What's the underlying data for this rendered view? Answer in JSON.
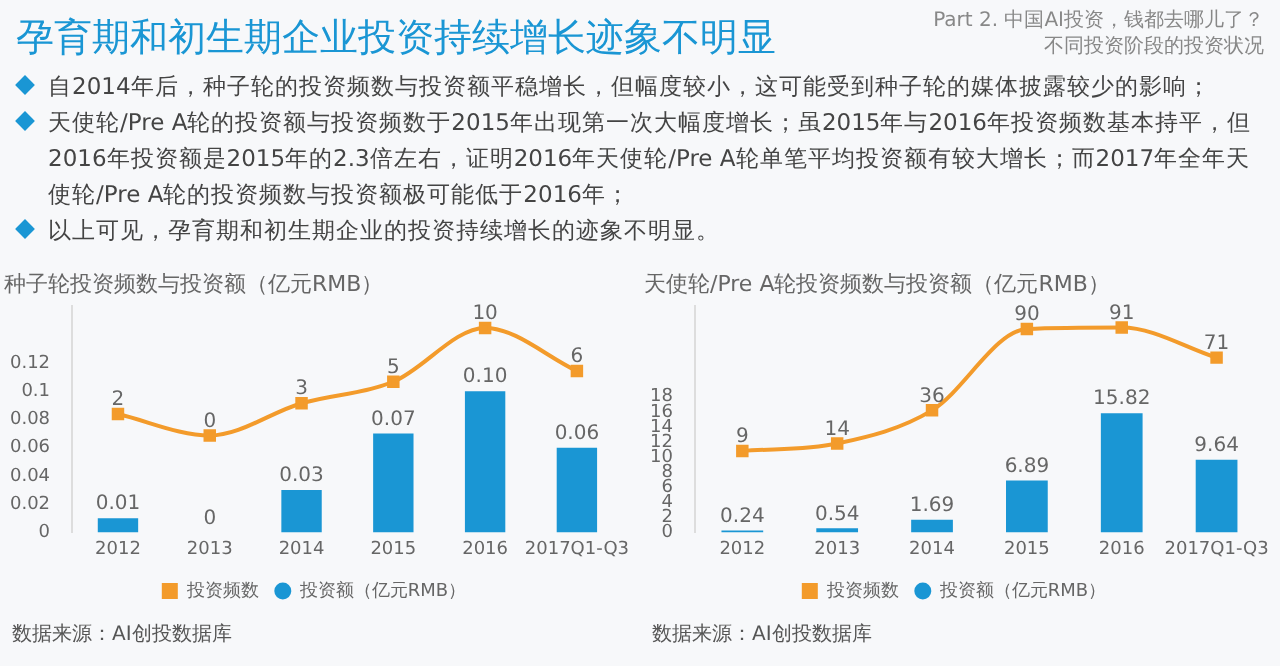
{
  "chart_data": [
    {
      "type": "other",
      "title": "孕育期和初生期企业投资持续增长迹象不明显",
      "subtitle": "Part 2. 中国AI投资，钱都去哪儿了？",
      "annotations": [
        "不同投资阶段的投资状况",
        "自2014年后，种子轮的投资频数与投资额平稳增长，但幅度较小，这可能受到种子轮的媒体披露较少的影响；",
        "天使轮/Pre A轮的投资额与投资频数于2015年出现第一次大幅度增长；虽2015年与2016年投资频数基本持平，但2016年投资额是2015年的2.3倍左右，证明2016年天使轮/Pre A轮单笔平均投资额有较大增长；而2017年全年天使轮/Pre A轮的投资频数与投资额极可能低于2016年；",
        "以上可见，孕育期和初生期企业的投资持续增长的迹象不明显。"
      ]
    },
    {
      "type": "bar",
      "title": "种子轮投资频数与投资额（亿元RMB）",
      "categories": [
        "2012",
        "2013",
        "2014",
        "2015",
        "2016",
        "2017Q1-Q3"
      ],
      "ylim": [
        0,
        0.16
      ],
      "yticks": [
        0,
        0.02,
        0.04,
        0.06,
        0.08,
        0.1,
        0.12
      ],
      "y2lim": [
        -9,
        12
      ],
      "grid": false,
      "legend": "bottom",
      "marker": "square",
      "data_labels": true,
      "annotations": [
        "数据来源：AI创投数据库"
      ],
      "series": [
        {
          "name": "投资额（亿元RMB）",
          "type": "bar",
          "color": "#1a96d4",
          "values": [
            0.01,
            0,
            0.03,
            0.07,
            0.1,
            0.06
          ],
          "value_labels": [
            "0.01",
            "0",
            "0.03",
            "0.07",
            "0.10",
            "0.06"
          ]
        },
        {
          "name": "投资频数",
          "type": "line",
          "axis": "y2",
          "color": "#f39b2b",
          "values": [
            2,
            0,
            3,
            5,
            10,
            6
          ]
        }
      ]
    },
    {
      "type": "bar",
      "title": "天使轮/Pre A轮投资频数与投资额（亿元RMB）",
      "categories": [
        "2012",
        "2013",
        "2014",
        "2015",
        "2016",
        "2017Q1-Q3"
      ],
      "ylim": [
        0,
        30
      ],
      "yticks": [
        0,
        2,
        4,
        6,
        8,
        10,
        12,
        14,
        16,
        18
      ],
      "y2lim": [
        -45,
        105
      ],
      "grid": false,
      "legend": "bottom",
      "marker": "square",
      "data_labels": true,
      "annotations": [
        "数据来源：AI创投数据库"
      ],
      "series": [
        {
          "name": "投资额（亿元RMB）",
          "type": "bar",
          "color": "#1a96d4",
          "values": [
            0.24,
            0.54,
            1.69,
            6.89,
            15.82,
            9.64
          ]
        },
        {
          "name": "投资频数",
          "type": "line",
          "axis": "y2",
          "color": "#f39b2b",
          "values": [
            9,
            14,
            36,
            90,
            91,
            71
          ]
        }
      ]
    }
  ]
}
